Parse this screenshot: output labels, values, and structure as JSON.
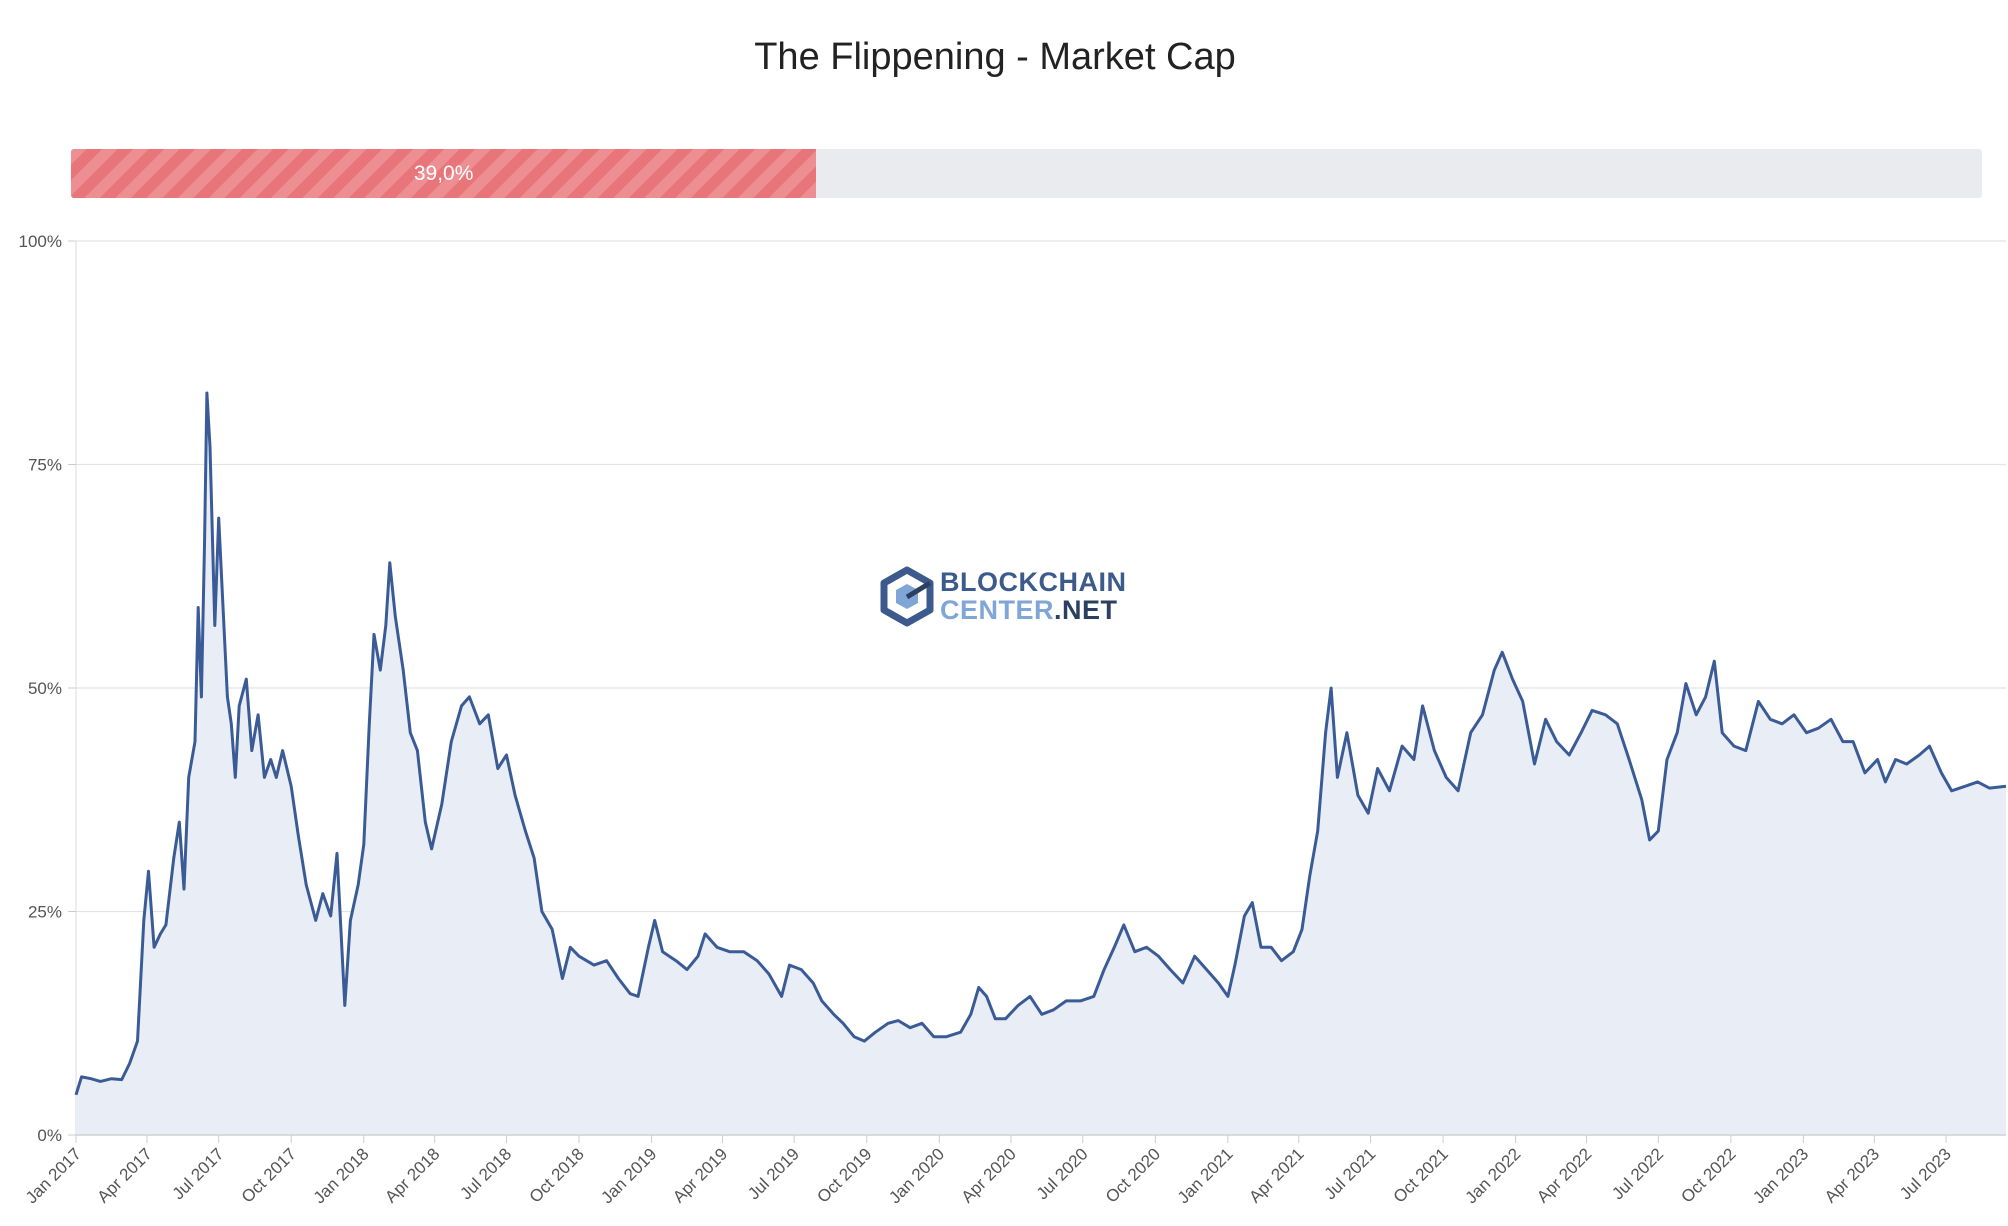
{
  "chart_data": {
    "type": "area",
    "title": "The Flippening - Market Cap",
    "progress": {
      "label": "39,0%",
      "value": 39.0,
      "fill_color": "#e8757a",
      "track_color": "#e9ebef"
    },
    "line_color": "#3b5b96",
    "fill_color": "#e9eef6",
    "ylim": [
      0,
      100
    ],
    "yticks": [
      {
        "value": 0,
        "label": "0%"
      },
      {
        "value": 25,
        "label": "25%"
      },
      {
        "value": 50,
        "label": "50%"
      },
      {
        "value": 75,
        "label": "75%"
      },
      {
        "value": 100,
        "label": "100%"
      }
    ],
    "xlim": [
      "2017-01-01",
      "2023-09-15"
    ],
    "xticks": [
      {
        "date": "2017-01-01",
        "label": "Jan 2017"
      },
      {
        "date": "2017-04-01",
        "label": "Apr 2017"
      },
      {
        "date": "2017-07-01",
        "label": "Jul 2017"
      },
      {
        "date": "2017-10-01",
        "label": "Oct 2017"
      },
      {
        "date": "2018-01-01",
        "label": "Jan 2018"
      },
      {
        "date": "2018-04-01",
        "label": "Apr 2018"
      },
      {
        "date": "2018-07-01",
        "label": "Jul 2018"
      },
      {
        "date": "2018-10-01",
        "label": "Oct 2018"
      },
      {
        "date": "2019-01-01",
        "label": "Jan 2019"
      },
      {
        "date": "2019-04-01",
        "label": "Apr 2019"
      },
      {
        "date": "2019-07-01",
        "label": "Jul 2019"
      },
      {
        "date": "2019-10-01",
        "label": "Oct 2019"
      },
      {
        "date": "2020-01-01",
        "label": "Jan 2020"
      },
      {
        "date": "2020-04-01",
        "label": "Apr 2020"
      },
      {
        "date": "2020-07-01",
        "label": "Jul 2020"
      },
      {
        "date": "2020-10-01",
        "label": "Oct 2020"
      },
      {
        "date": "2021-01-01",
        "label": "Jan 2021"
      },
      {
        "date": "2021-04-01",
        "label": "Apr 2021"
      },
      {
        "date": "2021-07-01",
        "label": "Jul 2021"
      },
      {
        "date": "2021-10-01",
        "label": "Oct 2021"
      },
      {
        "date": "2022-01-01",
        "label": "Jan 2022"
      },
      {
        "date": "2022-04-01",
        "label": "Apr 2022"
      },
      {
        "date": "2022-07-01",
        "label": "Jul 2022"
      },
      {
        "date": "2022-10-01",
        "label": "Oct 2022"
      },
      {
        "date": "2023-01-01",
        "label": "Jan 2023"
      },
      {
        "date": "2023-04-01",
        "label": "Apr 2023"
      },
      {
        "date": "2023-07-01",
        "label": "Jul 2023"
      }
    ],
    "series": [
      {
        "points": [
          [
            "2017-01-01",
            4.5
          ],
          [
            "2017-01-08",
            6.5
          ],
          [
            "2017-01-20",
            6.3
          ],
          [
            "2017-02-01",
            6.0
          ],
          [
            "2017-02-15",
            6.3
          ],
          [
            "2017-02-28",
            6.2
          ],
          [
            "2017-03-10",
            8.0
          ],
          [
            "2017-03-20",
            10.5
          ],
          [
            "2017-03-28",
            24.0
          ],
          [
            "2017-04-03",
            29.5
          ],
          [
            "2017-04-10",
            21.0
          ],
          [
            "2017-04-18",
            22.5
          ],
          [
            "2017-04-25",
            23.5
          ],
          [
            "2017-05-05",
            31.0
          ],
          [
            "2017-05-12",
            35.0
          ],
          [
            "2017-05-18",
            27.5
          ],
          [
            "2017-05-24",
            40.0
          ],
          [
            "2017-06-01",
            44.0
          ],
          [
            "2017-06-05",
            59.0
          ],
          [
            "2017-06-09",
            49.0
          ],
          [
            "2017-06-13",
            66.0
          ],
          [
            "2017-06-16",
            83.0
          ],
          [
            "2017-06-20",
            77.0
          ],
          [
            "2017-06-26",
            57.0
          ],
          [
            "2017-07-01",
            69.0
          ],
          [
            "2017-07-06",
            60.0
          ],
          [
            "2017-07-12",
            49.0
          ],
          [
            "2017-07-17",
            46.0
          ],
          [
            "2017-07-22",
            40.0
          ],
          [
            "2017-07-27",
            48.0
          ],
          [
            "2017-08-05",
            51.0
          ],
          [
            "2017-08-12",
            43.0
          ],
          [
            "2017-08-20",
            47.0
          ],
          [
            "2017-08-28",
            40.0
          ],
          [
            "2017-09-05",
            42.0
          ],
          [
            "2017-09-12",
            40.0
          ],
          [
            "2017-09-20",
            43.0
          ],
          [
            "2017-10-01",
            39.0
          ],
          [
            "2017-10-10",
            33.5
          ],
          [
            "2017-10-20",
            28.0
          ],
          [
            "2017-11-01",
            24.0
          ],
          [
            "2017-11-10",
            27.0
          ],
          [
            "2017-11-20",
            24.5
          ],
          [
            "2017-11-28",
            31.5
          ],
          [
            "2017-12-08",
            14.5
          ],
          [
            "2017-12-15",
            24.0
          ],
          [
            "2017-12-25",
            28.0
          ],
          [
            "2018-01-01",
            32.5
          ],
          [
            "2018-01-08",
            46.0
          ],
          [
            "2018-01-14",
            56.0
          ],
          [
            "2018-01-22",
            52.0
          ],
          [
            "2018-01-29",
            57.0
          ],
          [
            "2018-02-03",
            64.0
          ],
          [
            "2018-02-10",
            58.0
          ],
          [
            "2018-02-20",
            52.0
          ],
          [
            "2018-03-01",
            45.0
          ],
          [
            "2018-03-10",
            43.0
          ],
          [
            "2018-03-20",
            35.0
          ],
          [
            "2018-03-28",
            32.0
          ],
          [
            "2018-04-10",
            37.0
          ],
          [
            "2018-04-22",
            44.0
          ],
          [
            "2018-05-05",
            48.0
          ],
          [
            "2018-05-15",
            49.0
          ],
          [
            "2018-05-28",
            46.0
          ],
          [
            "2018-06-08",
            47.0
          ],
          [
            "2018-06-20",
            41.0
          ],
          [
            "2018-07-01",
            42.5
          ],
          [
            "2018-07-12",
            38.0
          ],
          [
            "2018-07-25",
            34.0
          ],
          [
            "2018-08-05",
            31.0
          ],
          [
            "2018-08-15",
            25.0
          ],
          [
            "2018-08-28",
            23.0
          ],
          [
            "2018-09-10",
            17.5
          ],
          [
            "2018-09-20",
            21.0
          ],
          [
            "2018-10-01",
            20.0
          ],
          [
            "2018-10-20",
            19.0
          ],
          [
            "2018-11-05",
            19.5
          ],
          [
            "2018-11-20",
            17.5
          ],
          [
            "2018-12-05",
            15.8
          ],
          [
            "2018-12-15",
            15.5
          ],
          [
            "2018-12-28",
            21.0
          ],
          [
            "2019-01-05",
            24.0
          ],
          [
            "2019-01-15",
            20.5
          ],
          [
            "2019-02-01",
            19.5
          ],
          [
            "2019-02-15",
            18.5
          ],
          [
            "2019-03-01",
            20.0
          ],
          [
            "2019-03-10",
            22.5
          ],
          [
            "2019-03-25",
            21.0
          ],
          [
            "2019-04-10",
            20.5
          ],
          [
            "2019-04-28",
            20.5
          ],
          [
            "2019-05-15",
            19.5
          ],
          [
            "2019-05-30",
            18.0
          ],
          [
            "2019-06-15",
            15.5
          ],
          [
            "2019-06-25",
            19.0
          ],
          [
            "2019-07-10",
            18.5
          ],
          [
            "2019-07-25",
            17.0
          ],
          [
            "2019-08-05",
            15.0
          ],
          [
            "2019-08-20",
            13.5
          ],
          [
            "2019-09-01",
            12.5
          ],
          [
            "2019-09-15",
            11.0
          ],
          [
            "2019-09-28",
            10.5
          ],
          [
            "2019-10-12",
            11.5
          ],
          [
            "2019-10-28",
            12.5
          ],
          [
            "2019-11-10",
            12.8
          ],
          [
            "2019-11-25",
            12.0
          ],
          [
            "2019-12-10",
            12.5
          ],
          [
            "2019-12-25",
            11.0
          ],
          [
            "2020-01-10",
            11.0
          ],
          [
            "2020-01-28",
            11.5
          ],
          [
            "2020-02-10",
            13.5
          ],
          [
            "2020-02-20",
            16.5
          ],
          [
            "2020-03-01",
            15.5
          ],
          [
            "2020-03-12",
            13.0
          ],
          [
            "2020-03-25",
            13.0
          ],
          [
            "2020-04-10",
            14.5
          ],
          [
            "2020-04-25",
            15.5
          ],
          [
            "2020-05-10",
            13.5
          ],
          [
            "2020-05-25",
            14.0
          ],
          [
            "2020-06-10",
            15.0
          ],
          [
            "2020-06-28",
            15.0
          ],
          [
            "2020-07-15",
            15.5
          ],
          [
            "2020-07-28",
            18.5
          ],
          [
            "2020-08-10",
            21.0
          ],
          [
            "2020-08-22",
            23.5
          ],
          [
            "2020-09-05",
            20.5
          ],
          [
            "2020-09-20",
            21.0
          ],
          [
            "2020-10-05",
            20.0
          ],
          [
            "2020-10-20",
            18.5
          ],
          [
            "2020-11-05",
            17.0
          ],
          [
            "2020-11-20",
            20.0
          ],
          [
            "2020-12-05",
            18.5
          ],
          [
            "2020-12-20",
            17.0
          ],
          [
            "2021-01-01",
            15.5
          ],
          [
            "2021-01-10",
            19.0
          ],
          [
            "2021-01-22",
            24.5
          ],
          [
            "2021-02-01",
            26.0
          ],
          [
            "2021-02-12",
            21.0
          ],
          [
            "2021-02-25",
            21.0
          ],
          [
            "2021-03-10",
            19.5
          ],
          [
            "2021-03-25",
            20.5
          ],
          [
            "2021-04-05",
            23.0
          ],
          [
            "2021-04-15",
            29.0
          ],
          [
            "2021-04-25",
            34.0
          ],
          [
            "2021-05-05",
            45.0
          ],
          [
            "2021-05-12",
            50.0
          ],
          [
            "2021-05-20",
            40.0
          ],
          [
            "2021-06-01",
            45.0
          ],
          [
            "2021-06-15",
            38.0
          ],
          [
            "2021-06-28",
            36.0
          ],
          [
            "2021-07-10",
            41.0
          ],
          [
            "2021-07-25",
            38.5
          ],
          [
            "2021-08-10",
            43.5
          ],
          [
            "2021-08-25",
            42.0
          ],
          [
            "2021-09-05",
            48.0
          ],
          [
            "2021-09-20",
            43.0
          ],
          [
            "2021-10-05",
            40.0
          ],
          [
            "2021-10-20",
            38.5
          ],
          [
            "2021-11-05",
            45.0
          ],
          [
            "2021-11-20",
            47.0
          ],
          [
            "2021-12-05",
            52.0
          ],
          [
            "2021-12-15",
            54.0
          ],
          [
            "2021-12-28",
            51.0
          ],
          [
            "2022-01-10",
            48.5
          ],
          [
            "2022-01-25",
            41.5
          ],
          [
            "2022-02-08",
            46.5
          ],
          [
            "2022-02-22",
            44.0
          ],
          [
            "2022-03-10",
            42.5
          ],
          [
            "2022-03-25",
            45.0
          ],
          [
            "2022-04-08",
            47.5
          ],
          [
            "2022-04-25",
            47.0
          ],
          [
            "2022-05-10",
            46.0
          ],
          [
            "2022-05-25",
            42.0
          ],
          [
            "2022-06-10",
            37.5
          ],
          [
            "2022-06-20",
            33.0
          ],
          [
            "2022-07-01",
            34.0
          ],
          [
            "2022-07-12",
            42.0
          ],
          [
            "2022-07-25",
            45.0
          ],
          [
            "2022-08-05",
            50.5
          ],
          [
            "2022-08-18",
            47.0
          ],
          [
            "2022-08-30",
            49.0
          ],
          [
            "2022-09-10",
            53.0
          ],
          [
            "2022-09-20",
            45.0
          ],
          [
            "2022-10-05",
            43.5
          ],
          [
            "2022-10-20",
            43.0
          ],
          [
            "2022-11-05",
            48.5
          ],
          [
            "2022-11-20",
            46.5
          ],
          [
            "2022-12-05",
            46.0
          ],
          [
            "2022-12-20",
            47.0
          ],
          [
            "2023-01-05",
            45.0
          ],
          [
            "2023-01-20",
            45.5
          ],
          [
            "2023-02-05",
            46.5
          ],
          [
            "2023-02-20",
            44.0
          ],
          [
            "2023-03-05",
            44.0
          ],
          [
            "2023-03-20",
            40.5
          ],
          [
            "2023-04-05",
            42.0
          ],
          [
            "2023-04-15",
            39.5
          ],
          [
            "2023-04-28",
            42.0
          ],
          [
            "2023-05-12",
            41.5
          ],
          [
            "2023-05-28",
            42.5
          ],
          [
            "2023-06-10",
            43.5
          ],
          [
            "2023-06-25",
            40.5
          ],
          [
            "2023-07-08",
            38.5
          ],
          [
            "2023-07-25",
            39.0
          ],
          [
            "2023-08-10",
            39.5
          ],
          [
            "2023-08-25",
            38.8
          ],
          [
            "2023-09-15",
            39.0
          ]
        ]
      }
    ],
    "grid": true,
    "watermark": {
      "line1": "BLOCKCHAIN",
      "line2a": "CENTER",
      "line2b": ".NET"
    }
  }
}
